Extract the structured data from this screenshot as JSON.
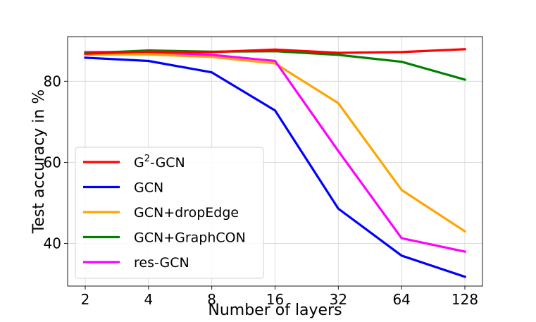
{
  "chart_data": {
    "type": "line",
    "title": "",
    "xlabel": "Number of layers",
    "ylabel": "Test accuracy in %",
    "categories": [
      "2",
      "4",
      "8",
      "16",
      "32",
      "64",
      "128"
    ],
    "ylim": [
      29.5,
      91
    ],
    "yticks": [
      40,
      60,
      80
    ],
    "grid": true,
    "legend_position": "bottom-left",
    "series": [
      {
        "name": "G2-GCN",
        "label_base": "G",
        "label_sup": "2",
        "label_rest": "-GCN",
        "color": "#ff0000",
        "values": [
          86.8,
          87.3,
          87.2,
          87.8,
          87.0,
          87.2,
          87.9
        ]
      },
      {
        "name": "GCN",
        "color": "#0000ff",
        "values": [
          85.8,
          85.0,
          82.2,
          72.8,
          48.6,
          37.0,
          31.8
        ]
      },
      {
        "name": "GCN+dropEdge",
        "color": "#ffa500",
        "values": [
          86.6,
          86.6,
          86.0,
          84.4,
          74.6,
          53.2,
          43.0
        ]
      },
      {
        "name": "GCN+GraphCON",
        "color": "#008000",
        "values": [
          86.9,
          87.6,
          87.3,
          87.4,
          86.5,
          84.8,
          80.4
        ]
      },
      {
        "name": "res-GCN",
        "color": "#ff00ff",
        "values": [
          87.2,
          87.2,
          86.5,
          85.0,
          62.8,
          41.3,
          38.0
        ]
      }
    ]
  }
}
